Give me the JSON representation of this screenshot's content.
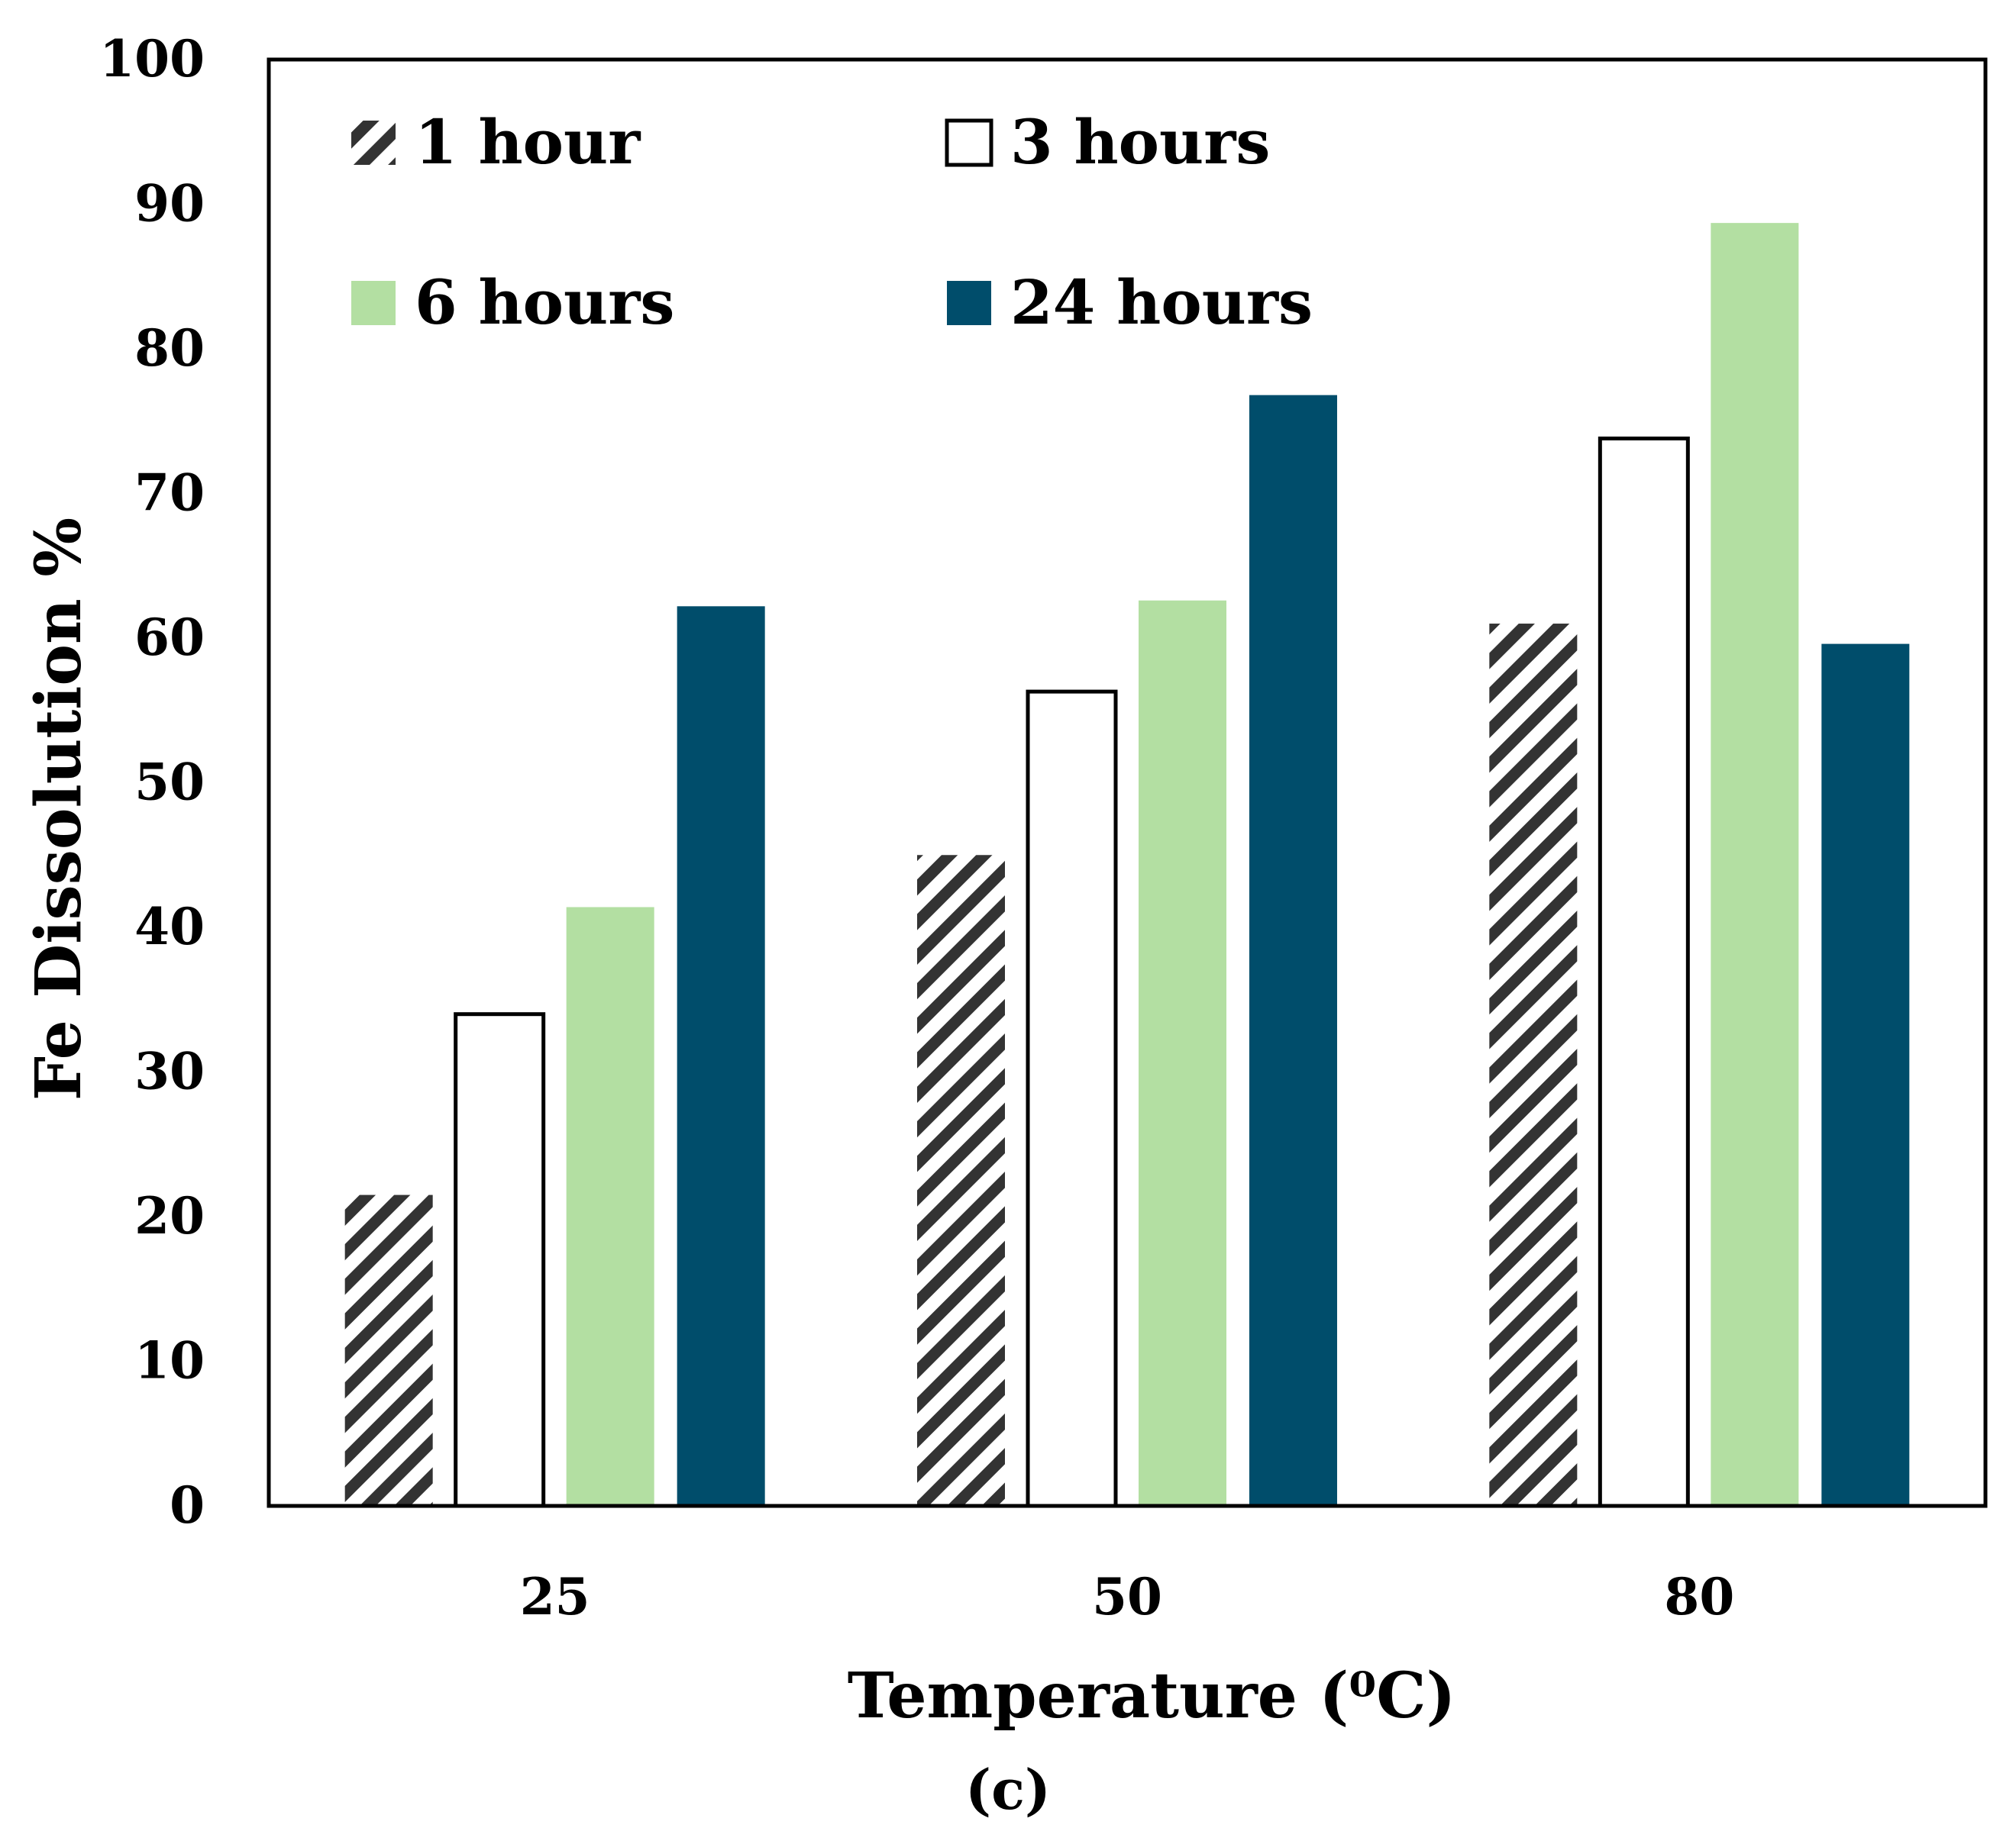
{
  "chart_data": {
    "type": "bar",
    "title": "",
    "xlabel": "Temperature (⁰C)",
    "ylabel": "Fe Dissolution %",
    "caption": "(c)",
    "categories": [
      "25",
      "50",
      "80"
    ],
    "ylim": [
      0,
      100
    ],
    "yticks": [
      "0",
      "10",
      "20",
      "30",
      "40",
      "50",
      "60",
      "70",
      "80",
      "90",
      "100"
    ],
    "grid": false,
    "legend_position": "top-left",
    "series": [
      {
        "name": "1 hour",
        "values": [
          21.5,
          45,
          61
        ],
        "color": "#3a3a3a",
        "fill": "hatched"
      },
      {
        "name": "3 hours",
        "values": [
          34,
          56.3,
          73.8
        ],
        "color": "#ffffff",
        "fill": "outline"
      },
      {
        "name": "6 hours",
        "values": [
          41.4,
          62.6,
          88.7
        ],
        "color": "#b3dfa2",
        "fill": "solid"
      },
      {
        "name": "24 hours",
        "values": [
          62.2,
          76.8,
          59.6
        ],
        "color": "#004d6b",
        "fill": "solid"
      }
    ]
  }
}
